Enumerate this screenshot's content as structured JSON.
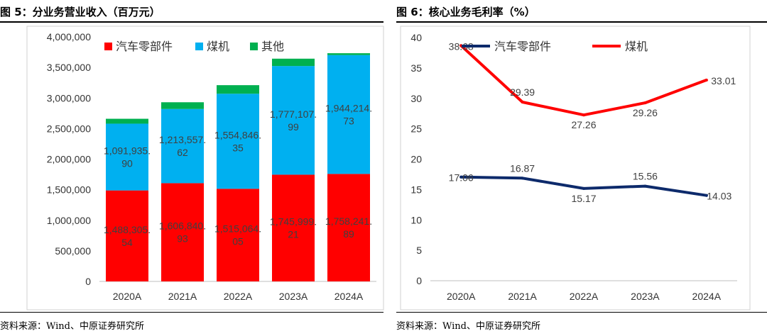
{
  "left": {
    "title": "图 5：分业务营业收入（百万元）",
    "source": "资料来源：Wind、中原证券研究所",
    "chart_data": {
      "type": "bar",
      "stacked": true,
      "categories": [
        "2020A",
        "2021A",
        "2022A",
        "2023A",
        "2024A"
      ],
      "ylim": [
        0,
        4000000
      ],
      "yticks": [
        "0",
        "500,000",
        "1,000,000",
        "1,500,000",
        "2,000,000",
        "2,500,000",
        "3,000,000",
        "3,500,000",
        "4,000,000"
      ],
      "legend_position": "top-left",
      "series": [
        {
          "name": "汽车零部件",
          "color": "#ff0000",
          "values": [
            1488305.54,
            1606840.93,
            1515064.05,
            1745999.21,
            1758241.89
          ],
          "labels": [
            "1,488,305.\n54",
            "1,606,840.\n93",
            "1,515,064.\n05",
            "1,745,999.\n21",
            "1,758,241.\n89"
          ]
        },
        {
          "name": "煤机",
          "color": "#00b0f0",
          "values": [
            1091935.9,
            1213557.62,
            1554846.35,
            1777107.99,
            1944214.73
          ],
          "labels": [
            "1,091,935.\n90",
            "1,213,557.\n62",
            "1,554,846.\n35",
            "1,777,107.\n99",
            "1,944,214.\n73"
          ]
        },
        {
          "name": "其他",
          "color": "#00b050",
          "values": [
            80000,
            110000,
            140000,
            120000,
            30000
          ]
        }
      ]
    }
  },
  "right": {
    "title": "图 6：核心业务毛利率（%）",
    "source": "资料来源：Wind、中原证券研究所",
    "chart_data": {
      "type": "line",
      "categories": [
        "2020A",
        "2021A",
        "2022A",
        "2023A",
        "2024A"
      ],
      "ylim": [
        0,
        40
      ],
      "yticks": [
        "0",
        "5",
        "10",
        "15",
        "20",
        "25",
        "30",
        "35",
        "40"
      ],
      "legend_position": "top",
      "series": [
        {
          "name": "汽车零部件",
          "color": "#0d2a6b",
          "values": [
            17.06,
            16.87,
            15.17,
            15.56,
            14.03
          ],
          "labels": [
            "17.06",
            "16.87",
            "15.17",
            "15.56",
            "14.03"
          ]
        },
        {
          "name": "煤机",
          "color": "#ff0000",
          "values": [
            38.68,
            29.39,
            27.26,
            29.26,
            33.01
          ],
          "labels": [
            "38.68",
            "29.39",
            "27.26",
            "29.26",
            "33.01"
          ]
        }
      ]
    }
  }
}
